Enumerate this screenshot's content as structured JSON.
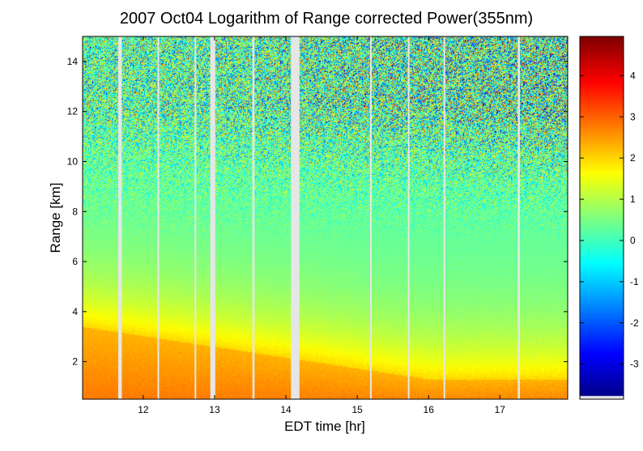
{
  "chart_data": {
    "type": "heatmap",
    "title": "2007 Oct04  Logarithm of Range corrected Power(355nm)",
    "xlabel": "EDT time [hr]",
    "ylabel": "Range [km]",
    "xlim": [
      11.15,
      17.95
    ],
    "ylim": [
      0.5,
      15.0
    ],
    "x_ticks": [
      "12",
      "13",
      "14",
      "15",
      "16",
      "17"
    ],
    "x_tick_values": [
      12,
      13,
      14,
      15,
      16,
      17
    ],
    "y_ticks": [
      "2",
      "4",
      "6",
      "8",
      "10",
      "12",
      "14"
    ],
    "y_tick_values": [
      2,
      4,
      6,
      8,
      10,
      12,
      14
    ],
    "colorbar": {
      "range": [
        -3.85,
        4.95
      ],
      "ticks": [
        "4",
        "3",
        "2",
        "1",
        "0",
        "-1",
        "-2",
        "-3"
      ],
      "tick_values": [
        4,
        3,
        2,
        1,
        0,
        -1,
        -2,
        -3
      ],
      "colormap": "jet"
    },
    "data_gaps_hr": [
      [
        11.65,
        11.7
      ],
      [
        12.2,
        12.22
      ],
      [
        12.72,
        12.74
      ],
      [
        12.94,
        13.01
      ],
      [
        13.53,
        13.56
      ],
      [
        14.07,
        14.19
      ],
      [
        15.18,
        15.2
      ],
      [
        15.71,
        15.73
      ],
      [
        16.21,
        16.23
      ],
      [
        17.25,
        17.28
      ]
    ],
    "profile_model": {
      "surface_value": 2.9,
      "boundary_layer_km": {
        "start": 3.4,
        "end": 1.3
      },
      "upper_level_value": 0.2,
      "noise_onset_km": 8.5
    }
  }
}
